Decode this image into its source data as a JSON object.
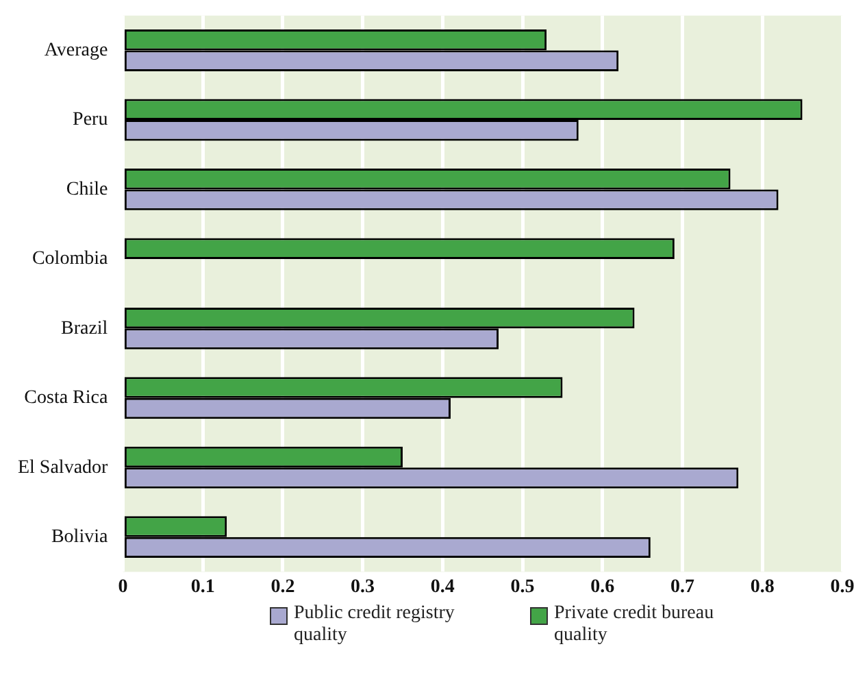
{
  "chart_data": {
    "type": "bar",
    "orientation": "horizontal",
    "categories": [
      "Average",
      "Peru",
      "Chile",
      "Colombia",
      "Brazil",
      "Costa Rica",
      "El Salvador",
      "Bolivia"
    ],
    "series": [
      {
        "name": "Public credit registry quality",
        "color": "#a9a9d0",
        "values": [
          0.62,
          0.57,
          0.82,
          null,
          0.47,
          0.41,
          0.77,
          0.66
        ]
      },
      {
        "name": "Private credit bureau quality",
        "color": "#43a447",
        "values": [
          0.53,
          0.85,
          0.76,
          0.69,
          0.64,
          0.55,
          0.35,
          0.13
        ]
      }
    ],
    "xlim": [
      0,
      0.9
    ],
    "xticks": [
      0,
      0.1,
      0.2,
      0.3,
      0.4,
      0.5,
      0.6,
      0.7,
      0.8,
      0.9
    ],
    "grid": "x",
    "legend": "bottom"
  }
}
